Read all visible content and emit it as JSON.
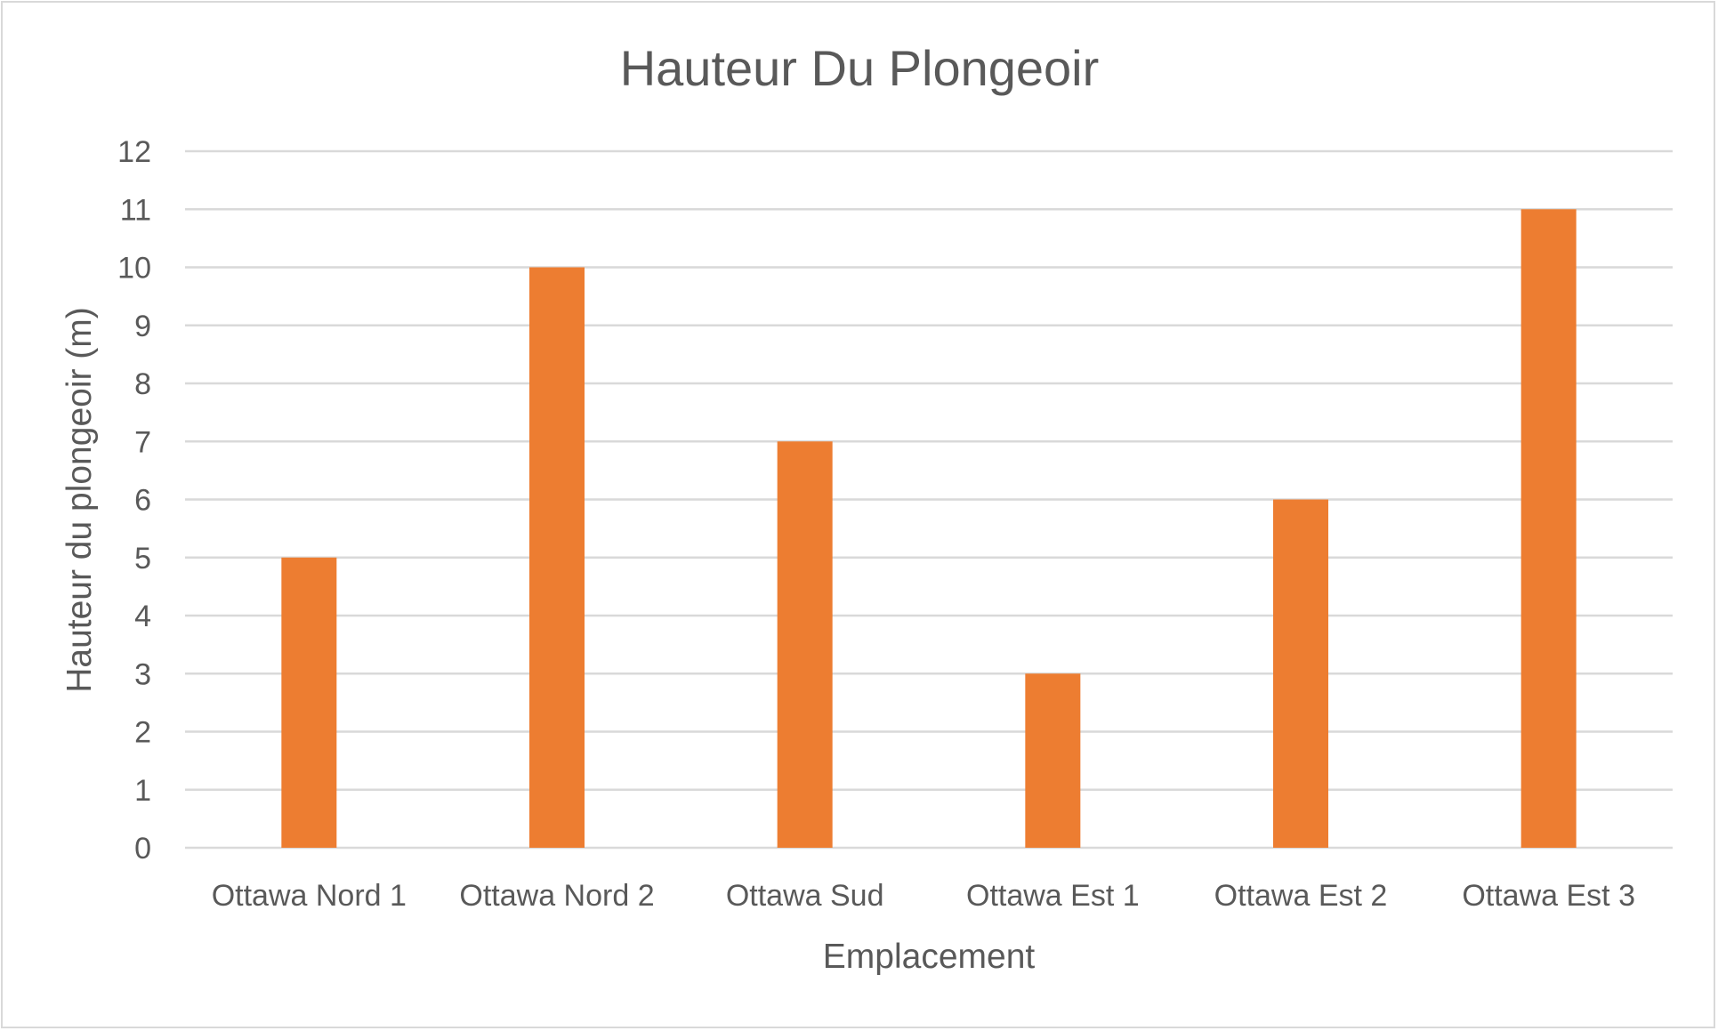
{
  "chart_data": {
    "type": "bar",
    "title": "Hauteur Du Plongeoir",
    "xlabel": "Emplacement",
    "ylabel": "Hauteur du plongeoir (m)",
    "categories": [
      "Ottawa Nord 1",
      "Ottawa Nord 2",
      "Ottawa Sud",
      "Ottawa Est 1",
      "Ottawa Est 2",
      "Ottawa Est 3"
    ],
    "values": [
      5,
      10,
      7,
      3,
      6,
      11
    ],
    "ylim": [
      0,
      12
    ],
    "yticks": [
      0,
      1,
      2,
      3,
      4,
      5,
      6,
      7,
      8,
      9,
      10,
      11,
      12
    ],
    "grid": true,
    "legend": "none",
    "bar_color": "#ED7D31",
    "grid_color": "#D9D9D9",
    "text_color": "#595959"
  }
}
